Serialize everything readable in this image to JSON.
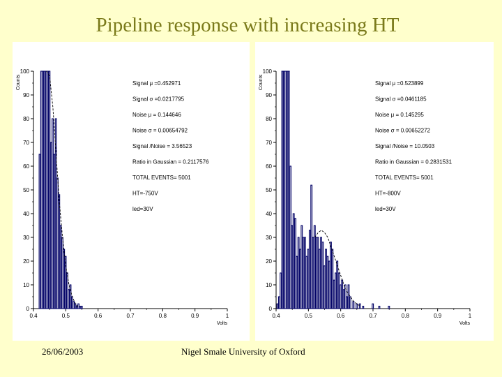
{
  "slide": {
    "title": "Pipeline response with increasing HT",
    "footer_date": "26/06/2003",
    "footer_author": "Nigel Smale University of Oxford"
  },
  "colors": {
    "background": "#ffffcc",
    "title": "#7a7a1a",
    "hist": "#000066",
    "panel": "#ffffff"
  },
  "chart_data": [
    {
      "type": "bar",
      "title": "",
      "xlabel": "Volts",
      "ylabel": "Counts",
      "xlim": [
        0.4,
        1.0
      ],
      "ylim": [
        0,
        100
      ],
      "xticks": [
        "0.4",
        "0.5",
        "0.6",
        "0.7",
        "0.8",
        "0.9",
        "1"
      ],
      "yticks": [
        "0",
        "10",
        "20",
        "30",
        "40",
        "50",
        "60",
        "70",
        "80",
        "90",
        "100"
      ],
      "bins_x": [
        0.42,
        0.425,
        0.43,
        0.435,
        0.44,
        0.445,
        0.45,
        0.455,
        0.46,
        0.465,
        0.47,
        0.475,
        0.48,
        0.485,
        0.49,
        0.495,
        0.5,
        0.505,
        0.51,
        0.515,
        0.52,
        0.525,
        0.53,
        0.535,
        0.54,
        0.545,
        0.55
      ],
      "values": [
        65,
        100,
        100,
        100,
        100,
        100,
        100,
        70,
        80,
        65,
        80,
        55,
        48,
        35,
        30,
        25,
        22,
        15,
        8,
        10,
        5,
        3,
        2,
        1,
        2,
        1,
        1
      ],
      "fit_x": [
        0.44,
        0.45,
        0.46,
        0.47,
        0.48,
        0.49,
        0.5,
        0.51,
        0.52,
        0.53,
        0.54
      ],
      "fit_y": [
        100,
        98,
        85,
        65,
        45,
        30,
        18,
        10,
        5,
        2,
        0.5
      ],
      "stats": [
        "Signal μ =0.452971",
        "Signal σ =0.0217795",
        "Noise μ = 0.144646",
        "Noise σ = 0.00654792",
        "Signal /Noise = 3.56523",
        "Ratio in Gaussian = 0.2117576",
        "TOTAL EVENTS=      5001",
        "HT=-750V",
        "led=30V"
      ]
    },
    {
      "type": "bar",
      "title": "",
      "xlabel": "Volts",
      "ylabel": "Counts",
      "xlim": [
        0.4,
        1.0
      ],
      "ylim": [
        0,
        100
      ],
      "xticks": [
        "0.4",
        "0.5",
        "0.6",
        "0.7",
        "0.8",
        "0.9",
        "1"
      ],
      "yticks": [
        "0",
        "10",
        "20",
        "30",
        "40",
        "50",
        "60",
        "70",
        "80",
        "90",
        "100"
      ],
      "bins_x": [
        0.405,
        0.41,
        0.415,
        0.42,
        0.425,
        0.43,
        0.435,
        0.44,
        0.445,
        0.45,
        0.455,
        0.46,
        0.465,
        0.47,
        0.475,
        0.48,
        0.485,
        0.49,
        0.495,
        0.5,
        0.505,
        0.51,
        0.515,
        0.52,
        0.525,
        0.53,
        0.535,
        0.54,
        0.545,
        0.55,
        0.555,
        0.56,
        0.565,
        0.57,
        0.575,
        0.58,
        0.585,
        0.59,
        0.595,
        0.6,
        0.605,
        0.61,
        0.615,
        0.62,
        0.625,
        0.63,
        0.64,
        0.65,
        0.66,
        0.67,
        0.7,
        0.72,
        0.75
      ],
      "values": [
        2,
        5,
        15,
        100,
        100,
        100,
        100,
        100,
        60,
        35,
        40,
        38,
        22,
        30,
        25,
        35,
        30,
        30,
        22,
        25,
        33,
        52,
        30,
        35,
        30,
        30,
        25,
        30,
        28,
        18,
        25,
        22,
        20,
        28,
        25,
        12,
        15,
        20,
        15,
        10,
        12,
        8,
        10,
        5,
        10,
        5,
        3,
        2,
        2,
        1,
        2,
        1,
        1
      ],
      "fit_x": [
        0.52,
        0.53,
        0.54,
        0.55,
        0.56,
        0.57,
        0.58,
        0.59,
        0.6,
        0.61,
        0.62,
        0.63,
        0.64,
        0.65,
        0.66
      ],
      "fit_y": [
        30,
        32,
        33,
        32,
        30,
        26,
        22,
        18,
        14,
        10,
        7,
        5,
        3,
        2,
        1
      ],
      "stats": [
        "Signal μ =0.523899",
        "Signal σ =0.0461185",
        "Noise μ = 0.145295",
        "Noise σ = 0.00652272",
        "Signal /Noise = 10.0503",
        "Ratio in Gaussian = 0.2831531",
        "TOTAL EVENTS=      5001",
        "HT=-800V",
        "led=30V"
      ]
    }
  ]
}
